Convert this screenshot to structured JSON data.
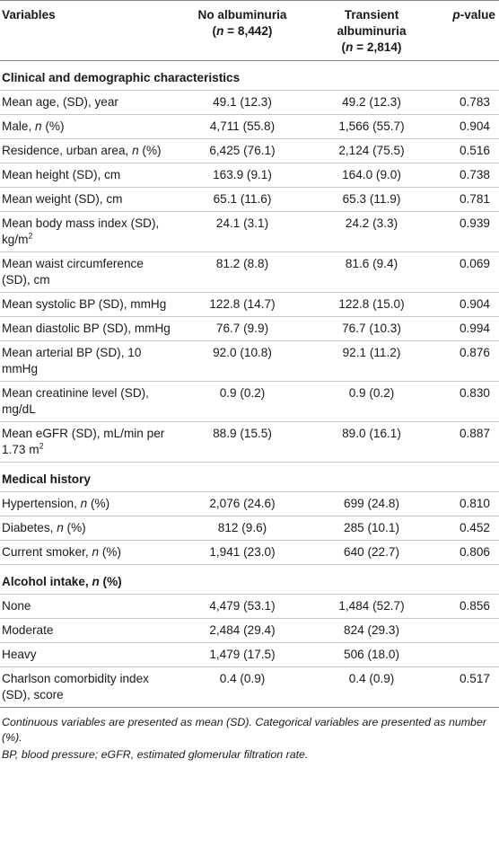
{
  "header": {
    "col1": "Variables",
    "col2": [
      "No albuminuria",
      "(n = 8,442)"
    ],
    "col3": [
      "Transient",
      "albuminuria",
      "(n = 2,814)"
    ],
    "col4": "p-value"
  },
  "sections": [
    {
      "title": "Clinical and demographic characteristics",
      "rows": [
        {
          "label": "Mean age, (SD), year",
          "a": "49.1 (12.3)",
          "b": "49.2 (12.3)",
          "p": "0.783"
        },
        {
          "label": "Male, n (%)",
          "a": "4,711 (55.8)",
          "b": "1,566 (55.7)",
          "p": "0.904"
        },
        {
          "label": "Residence, urban area, n (%)",
          "a": "6,425 (76.1)",
          "b": "2,124 (75.5)",
          "p": "0.516"
        },
        {
          "label": "Mean height (SD), cm",
          "a": "163.9 (9.1)",
          "b": "164.0 (9.0)",
          "p": "0.738"
        },
        {
          "label": "Mean weight (SD), cm",
          "a": "65.1 (11.6)",
          "b": "65.3 (11.9)",
          "p": "0.781"
        },
        {
          "label": "Mean body mass index (SD), kg/m2",
          "a": "24.1 (3.1)",
          "b": "24.2 (3.3)",
          "p": "0.939"
        },
        {
          "label": "Mean waist circumference (SD), cm",
          "a": "81.2 (8.8)",
          "b": "81.6 (9.4)",
          "p": "0.069"
        },
        {
          "label": "Mean systolic BP (SD), mmHg",
          "a": "122.8 (14.7)",
          "b": "122.8 (15.0)",
          "p": "0.904"
        },
        {
          "label": "Mean diastolic BP (SD), mmHg",
          "a": "76.7 (9.9)",
          "b": "76.7 (10.3)",
          "p": "0.994"
        },
        {
          "label": "Mean arterial BP (SD), 10 mmHg",
          "a": "92.0 (10.8)",
          "b": "92.1 (11.2)",
          "p": "0.876"
        },
        {
          "label": "Mean creatinine level (SD), mg/dL",
          "a": "0.9 (0.2)",
          "b": "0.9 (0.2)",
          "p": "0.830"
        },
        {
          "label": "Mean eGFR (SD), mL/min per 1.73 m2",
          "a": "88.9 (15.5)",
          "b": "89.0 (16.1)",
          "p": "0.887"
        }
      ]
    },
    {
      "title": "Medical history",
      "rows": [
        {
          "label": "Hypertension, n (%)",
          "a": "2,076 (24.6)",
          "b": "699 (24.8)",
          "p": "0.810"
        },
        {
          "label": "Diabetes, n (%)",
          "a": "812 (9.6)",
          "b": "285 (10.1)",
          "p": "0.452"
        },
        {
          "label": "Current smoker, n (%)",
          "a": "1,941 (23.0)",
          "b": "640 (22.7)",
          "p": "0.806"
        }
      ]
    },
    {
      "title": "Alcohol intake, n (%)",
      "rows": [
        {
          "label": "None",
          "a": "4,479 (53.1)",
          "b": "1,484 (52.7)",
          "p": "0.856"
        },
        {
          "label": "Moderate",
          "a": "2,484 (29.4)",
          "b": "824 (29.3)",
          "p": ""
        },
        {
          "label": "Heavy",
          "a": "1,479 (17.5)",
          "b": "506 (18.0)",
          "p": ""
        },
        {
          "label": "Charlson comorbidity index (SD), score",
          "a": "0.4 (0.9)",
          "b": "0.4 (0.9)",
          "p": "0.517"
        }
      ]
    }
  ],
  "footnotes": [
    "Continuous variables are presented as mean (SD). Categorical variables are presented as number (%).",
    "BP, blood pressure; eGFR, estimated glomerular filtration rate."
  ]
}
